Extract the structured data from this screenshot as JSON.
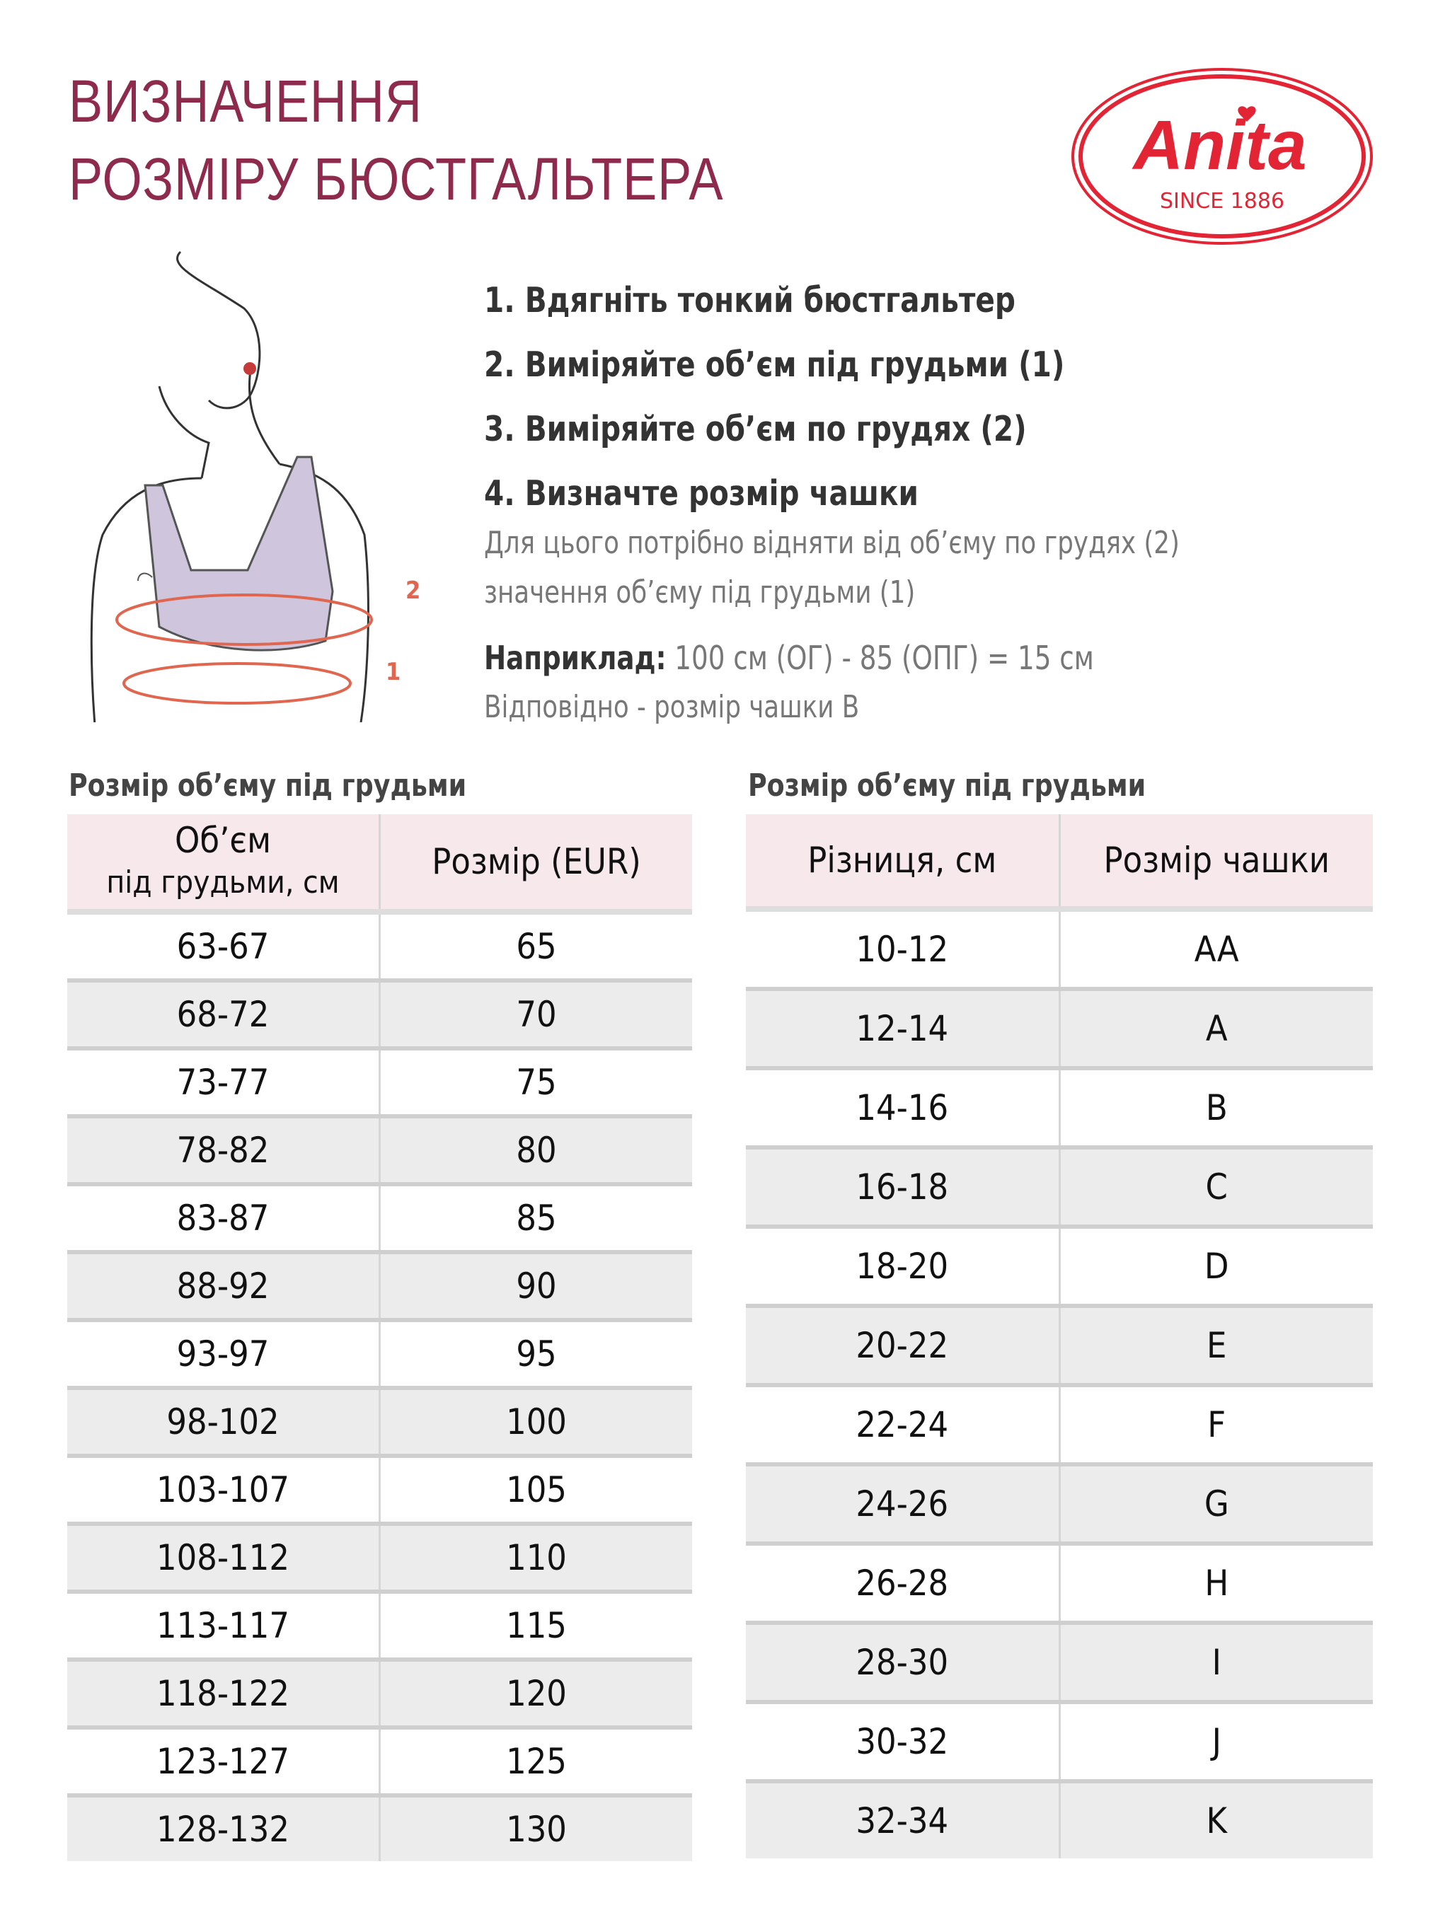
{
  "title": {
    "line1": "ВИЗНАЧЕННЯ",
    "line2": "РОЗМІРУ БЮСТГАЛЬТЕРА",
    "color": "#8e2a4c"
  },
  "logo": {
    "brand": "Anita",
    "tagline": "SINCE 1886",
    "color": "#e32434"
  },
  "illustration": {
    "label_bust": "2",
    "label_underbust": "1"
  },
  "instructions": {
    "steps": [
      "1. Вдягніть тонкий бюстгальтер",
      "2. Виміряйте об’єм під грудьми (1)",
      "3. Виміряйте об’єм по грудях (2)",
      "4. Визначте розмір чашки"
    ],
    "note_line1": "Для цього потрібно відняти від об’єму по грудях (2)",
    "note_line2": "значення об’єму під грудьми (1)",
    "example_label": "Наприклад:",
    "example_value": "100 см (ОГ) - 85 (ОПГ) = 15 см",
    "result": "Відповідно - розмір чашки B"
  },
  "band_table": {
    "heading": "Розмір об’єму під грудьми",
    "col1_line1": "Об’єм",
    "col1_line2": "під грудьми, см",
    "col2": "Розмір (EUR)",
    "rows": [
      [
        "63-67",
        "65"
      ],
      [
        "68-72",
        "70"
      ],
      [
        "73-77",
        "75"
      ],
      [
        "78-82",
        "80"
      ],
      [
        "83-87",
        "85"
      ],
      [
        "88-92",
        "90"
      ],
      [
        "93-97",
        "95"
      ],
      [
        "98-102",
        "100"
      ],
      [
        "103-107",
        "105"
      ],
      [
        "108-112",
        "110"
      ],
      [
        "113-117",
        "115"
      ],
      [
        "118-122",
        "120"
      ],
      [
        "123-127",
        "125"
      ],
      [
        "128-132",
        "130"
      ]
    ]
  },
  "cup_table": {
    "heading": "Розмір об’єму під грудьми",
    "col1": "Різниця, см",
    "col2": "Розмір чашки",
    "rows": [
      [
        "10-12",
        "AA"
      ],
      [
        "12-14",
        "A"
      ],
      [
        "14-16",
        "B"
      ],
      [
        "16-18",
        "C"
      ],
      [
        "18-20",
        "D"
      ],
      [
        "20-22",
        "E"
      ],
      [
        "22-24",
        "F"
      ],
      [
        "24-26",
        "G"
      ],
      [
        "26-28",
        "H"
      ],
      [
        "28-30",
        "I"
      ],
      [
        "30-32",
        "J"
      ],
      [
        "32-34",
        "K"
      ]
    ]
  }
}
